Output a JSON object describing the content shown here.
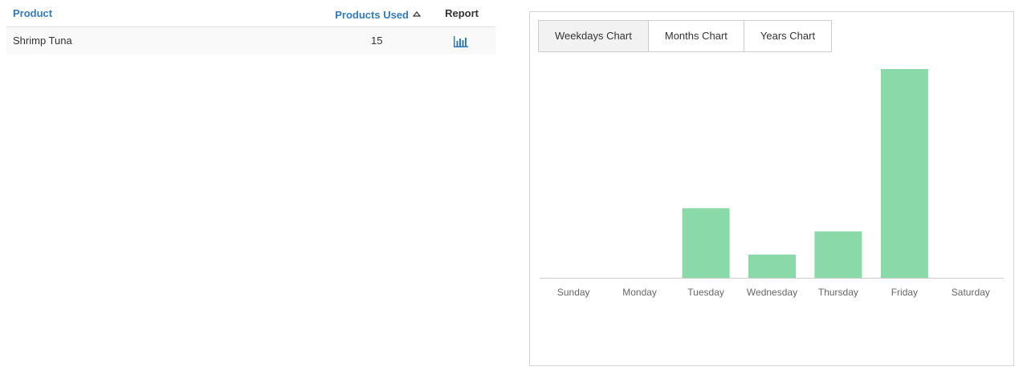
{
  "table": {
    "headers": {
      "product": "Product",
      "products_used": "Products Used",
      "report": "Report"
    },
    "rows": [
      {
        "product": "Shrimp Tuna",
        "products_used": "15",
        "report_icon": "bar-chart-icon"
      }
    ]
  },
  "chart_panel": {
    "tabs": [
      {
        "label": "Weekdays Chart",
        "active": true
      },
      {
        "label": "Months Chart",
        "active": false
      },
      {
        "label": "Years Chart",
        "active": false
      }
    ]
  },
  "colors": {
    "link": "#337ab7",
    "bar": "#8ad9a9",
    "row_alt": "#f9f9f9"
  },
  "chart_data": {
    "type": "bar",
    "categories": [
      "Sunday",
      "Monday",
      "Tuesday",
      "Wednesday",
      "Thursday",
      "Friday",
      "Saturday"
    ],
    "values": [
      0,
      0,
      3,
      1,
      2,
      9,
      0
    ],
    "title": "",
    "xlabel": "",
    "ylabel": "",
    "ylim": [
      0,
      9
    ],
    "grid": false,
    "legend": "none"
  }
}
